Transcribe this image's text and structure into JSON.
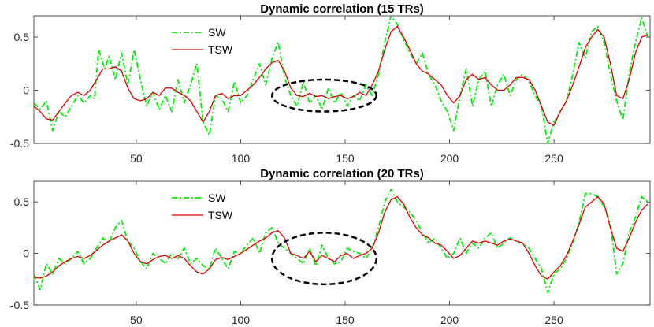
{
  "chart_data": [
    {
      "type": "line",
      "title": "Dynamic correlation (15 TRs)",
      "xlabel": "",
      "ylabel": "",
      "xlim": [
        1,
        296
      ],
      "ylim": [
        -0.5,
        0.7
      ],
      "xticks": [
        50,
        100,
        150,
        200,
        250
      ],
      "yticks": [
        -0.5,
        0,
        0.5
      ],
      "ytick_labels": [
        "-0.5",
        "0",
        "0.5"
      ],
      "legend": {
        "position": "top-left",
        "entries": [
          "SW",
          "TSW"
        ]
      },
      "annotation": {
        "shape": "dashed-ellipse",
        "center": [
          140,
          -0.05
        ],
        "x_half_width": 25,
        "y_half_height": 0.15
      },
      "series": [
        {
          "name": "SW",
          "color": "#00ee00",
          "style": "dash-dot",
          "x": [
            1,
            4,
            7,
            10,
            13,
            16,
            19,
            22,
            25,
            28,
            30,
            32,
            35,
            37,
            40,
            43,
            46,
            49,
            52,
            55,
            58,
            61,
            64,
            67,
            70,
            73,
            76,
            79,
            82,
            85,
            88,
            91,
            94,
            97,
            100,
            103,
            106,
            109,
            112,
            115,
            118,
            121,
            124,
            127,
            130,
            133,
            136,
            139,
            142,
            145,
            148,
            151,
            154,
            157,
            160,
            163,
            166,
            169,
            172,
            175,
            178,
            181,
            184,
            187,
            190,
            193,
            196,
            199,
            202,
            205,
            208,
            211,
            214,
            217,
            220,
            223,
            226,
            229,
            232,
            235,
            238,
            241,
            244,
            247,
            250,
            253,
            256,
            259,
            262,
            265,
            268,
            271,
            274,
            277,
            280,
            283,
            286,
            289,
            292,
            295
          ],
          "y": [
            -0.12,
            -0.18,
            -0.1,
            -0.38,
            -0.2,
            -0.25,
            -0.15,
            -0.05,
            -0.12,
            -0.05,
            -0.08,
            0.38,
            0.2,
            0.32,
            0.1,
            0.35,
            0.05,
            0.38,
            0.1,
            -0.15,
            -0.02,
            -0.18,
            -0.05,
            -0.2,
            0.1,
            -0.12,
            0.05,
            0.25,
            -0.3,
            -0.42,
            -0.05,
            -0.08,
            -0.2,
            0.08,
            -0.12,
            -0.05,
            0.1,
            0.25,
            0.05,
            0.3,
            0.45,
            0.12,
            -0.05,
            -0.15,
            0.08,
            -0.12,
            -0.05,
            -0.18,
            0.02,
            -0.12,
            -0.02,
            -0.15,
            -0.05,
            -0.1,
            0.05,
            -0.05,
            0.15,
            0.45,
            0.7,
            0.62,
            0.48,
            0.35,
            0.25,
            0.35,
            0.15,
            0.05,
            -0.1,
            -0.2,
            -0.38,
            -0.05,
            0.2,
            -0.15,
            0.1,
            0.18,
            -0.15,
            0.05,
            0.15,
            -0.05,
            0.1,
            0.15,
            0.08,
            -0.05,
            -0.15,
            -0.5,
            -0.3,
            -0.2,
            -0.1,
            0.15,
            0.45,
            0.3,
            0.55,
            0.6,
            0.45,
            0.15,
            -0.1,
            -0.28,
            0.15,
            0.45,
            0.68,
            0.5
          ]
        },
        {
          "name": "TSW",
          "color": "#dd0000",
          "style": "solid",
          "x": [
            1,
            4,
            7,
            10,
            13,
            16,
            19,
            22,
            25,
            28,
            31,
            34,
            37,
            40,
            43,
            46,
            49,
            52,
            55,
            58,
            61,
            64,
            67,
            70,
            73,
            76,
            79,
            82,
            85,
            88,
            91,
            94,
            97,
            100,
            103,
            106,
            109,
            112,
            115,
            118,
            121,
            124,
            127,
            130,
            133,
            136,
            139,
            142,
            145,
            148,
            151,
            154,
            157,
            160,
            163,
            166,
            169,
            172,
            175,
            178,
            181,
            184,
            187,
            190,
            193,
            196,
            199,
            202,
            205,
            208,
            211,
            214,
            217,
            220,
            223,
            226,
            229,
            232,
            235,
            238,
            241,
            244,
            247,
            250,
            253,
            256,
            259,
            262,
            265,
            268,
            271,
            274,
            277,
            280,
            283,
            286,
            289,
            292,
            295
          ],
          "y": [
            -0.15,
            -0.2,
            -0.27,
            -0.28,
            -0.2,
            -0.12,
            -0.05,
            -0.02,
            -0.05,
            0.0,
            0.1,
            0.2,
            0.2,
            0.22,
            0.18,
            0.02,
            -0.08,
            -0.1,
            -0.08,
            -0.02,
            -0.05,
            0.02,
            0.02,
            -0.02,
            -0.05,
            -0.1,
            -0.2,
            -0.3,
            -0.2,
            -0.05,
            -0.03,
            -0.08,
            -0.05,
            -0.05,
            0.0,
            0.05,
            0.12,
            0.2,
            0.26,
            0.28,
            0.18,
            0.02,
            -0.05,
            -0.06,
            -0.03,
            -0.06,
            -0.05,
            -0.08,
            -0.06,
            -0.05,
            -0.08,
            -0.06,
            -0.02,
            -0.05,
            0.05,
            0.18,
            0.38,
            0.55,
            0.6,
            0.5,
            0.38,
            0.25,
            0.18,
            0.15,
            0.1,
            0.05,
            -0.05,
            -0.12,
            -0.05,
            0.1,
            0.15,
            0.1,
            0.12,
            0.05,
            0.0,
            0.0,
            0.05,
            0.12,
            0.12,
            0.1,
            0.0,
            -0.15,
            -0.3,
            -0.33,
            -0.2,
            -0.1,
            0.05,
            0.22,
            0.4,
            0.5,
            0.57,
            0.5,
            0.25,
            -0.05,
            -0.08,
            0.1,
            0.35,
            0.5,
            0.52
          ]
        }
      ]
    },
    {
      "type": "line",
      "title": "Dynamic correlation (20 TRs)",
      "xlabel": "",
      "ylabel": "",
      "xlim": [
        1,
        296
      ],
      "ylim": [
        -0.5,
        0.7
      ],
      "xticks": [
        50,
        100,
        150,
        200,
        250
      ],
      "yticks": [
        -0.5,
        0,
        0.5
      ],
      "ytick_labels": [
        "-0.5",
        "0",
        "0.5"
      ],
      "legend": {
        "position": "top-left",
        "entries": [
          "SW",
          "TSW"
        ]
      },
      "annotation": {
        "shape": "dashed-ellipse",
        "center": [
          140,
          -0.05
        ],
        "x_half_width": 25,
        "y_half_height": 0.25
      },
      "series": [
        {
          "name": "SW",
          "color": "#00ee00",
          "style": "dash-dot",
          "x": [
            1,
            4,
            7,
            10,
            13,
            16,
            19,
            22,
            25,
            28,
            31,
            34,
            37,
            40,
            43,
            46,
            49,
            52,
            55,
            58,
            61,
            64,
            67,
            70,
            73,
            76,
            79,
            82,
            85,
            88,
            91,
            94,
            97,
            100,
            103,
            106,
            109,
            112,
            115,
            118,
            121,
            124,
            127,
            130,
            133,
            136,
            139,
            142,
            145,
            148,
            151,
            154,
            157,
            160,
            163,
            166,
            169,
            172,
            175,
            178,
            181,
            184,
            187,
            190,
            193,
            196,
            199,
            202,
            205,
            208,
            211,
            214,
            217,
            220,
            223,
            226,
            229,
            232,
            235,
            238,
            241,
            244,
            247,
            250,
            253,
            256,
            259,
            262,
            265,
            268,
            271,
            274,
            277,
            280,
            283,
            286,
            289,
            292,
            295
          ],
          "y": [
            -0.2,
            -0.35,
            -0.1,
            -0.2,
            -0.05,
            -0.1,
            -0.05,
            0.02,
            -0.1,
            -0.05,
            0.05,
            0.15,
            0.1,
            0.25,
            0.32,
            0.12,
            0.05,
            -0.08,
            -0.15,
            0.0,
            -0.05,
            -0.1,
            0.0,
            -0.05,
            0.05,
            -0.1,
            -0.05,
            -0.12,
            -0.15,
            0.05,
            -0.05,
            -0.15,
            0.02,
            0.0,
            0.08,
            0.15,
            0.0,
            0.2,
            0.25,
            0.1,
            0.05,
            0.0,
            -0.05,
            -0.1,
            0.05,
            -0.12,
            0.08,
            -0.05,
            -0.1,
            -0.08,
            0.05,
            0.02,
            0.0,
            -0.05,
            0.05,
            0.25,
            0.5,
            0.62,
            0.5,
            0.45,
            0.4,
            0.32,
            0.2,
            0.1,
            0.15,
            0.05,
            -0.05,
            0.0,
            0.15,
            0.0,
            0.1,
            0.05,
            0.15,
            0.2,
            0.05,
            0.1,
            0.15,
            0.12,
            0.1,
            0.05,
            -0.05,
            -0.15,
            -0.38,
            -0.2,
            -0.15,
            -0.05,
            0.1,
            0.3,
            0.58,
            0.58,
            0.55,
            0.45,
            0.3,
            -0.2,
            -0.1,
            0.2,
            0.35,
            0.55,
            0.5
          ]
        },
        {
          "name": "TSW",
          "color": "#dd0000",
          "style": "solid",
          "x": [
            1,
            4,
            7,
            10,
            13,
            16,
            19,
            22,
            25,
            28,
            31,
            34,
            37,
            40,
            43,
            46,
            49,
            52,
            55,
            58,
            61,
            64,
            67,
            70,
            73,
            76,
            79,
            82,
            85,
            88,
            91,
            94,
            97,
            100,
            103,
            106,
            109,
            112,
            115,
            118,
            121,
            124,
            127,
            130,
            133,
            136,
            139,
            142,
            145,
            148,
            151,
            154,
            157,
            160,
            163,
            166,
            169,
            172,
            175,
            178,
            181,
            184,
            187,
            190,
            193,
            196,
            199,
            202,
            205,
            208,
            211,
            214,
            217,
            220,
            223,
            226,
            229,
            232,
            235,
            238,
            241,
            244,
            247,
            250,
            253,
            256,
            259,
            262,
            265,
            268,
            271,
            274,
            277,
            280,
            283,
            286,
            289,
            292,
            295
          ],
          "y": [
            -0.23,
            -0.24,
            -0.22,
            -0.18,
            -0.12,
            -0.08,
            -0.05,
            -0.03,
            -0.05,
            -0.02,
            0.03,
            0.08,
            0.12,
            0.15,
            0.18,
            0.12,
            0.0,
            -0.08,
            -0.1,
            -0.06,
            -0.03,
            -0.02,
            -0.05,
            -0.02,
            -0.05,
            -0.12,
            -0.18,
            -0.2,
            -0.15,
            -0.06,
            -0.04,
            -0.06,
            -0.03,
            0.0,
            0.04,
            0.08,
            0.12,
            0.15,
            0.2,
            0.22,
            0.15,
            0.0,
            -0.02,
            -0.05,
            0.02,
            -0.08,
            -0.02,
            -0.05,
            -0.08,
            -0.02,
            0.0,
            -0.05,
            -0.02,
            0.0,
            0.05,
            0.2,
            0.4,
            0.52,
            0.55,
            0.48,
            0.35,
            0.25,
            0.18,
            0.15,
            0.1,
            0.08,
            0.02,
            -0.05,
            -0.02,
            0.05,
            0.12,
            0.1,
            0.12,
            0.1,
            0.08,
            0.12,
            0.14,
            0.12,
            0.1,
            0.0,
            -0.12,
            -0.22,
            -0.25,
            -0.18,
            -0.12,
            -0.02,
            0.12,
            0.28,
            0.45,
            0.5,
            0.55,
            0.48,
            0.25,
            0.05,
            0.02,
            0.15,
            0.3,
            0.42,
            0.48
          ]
        }
      ]
    }
  ]
}
